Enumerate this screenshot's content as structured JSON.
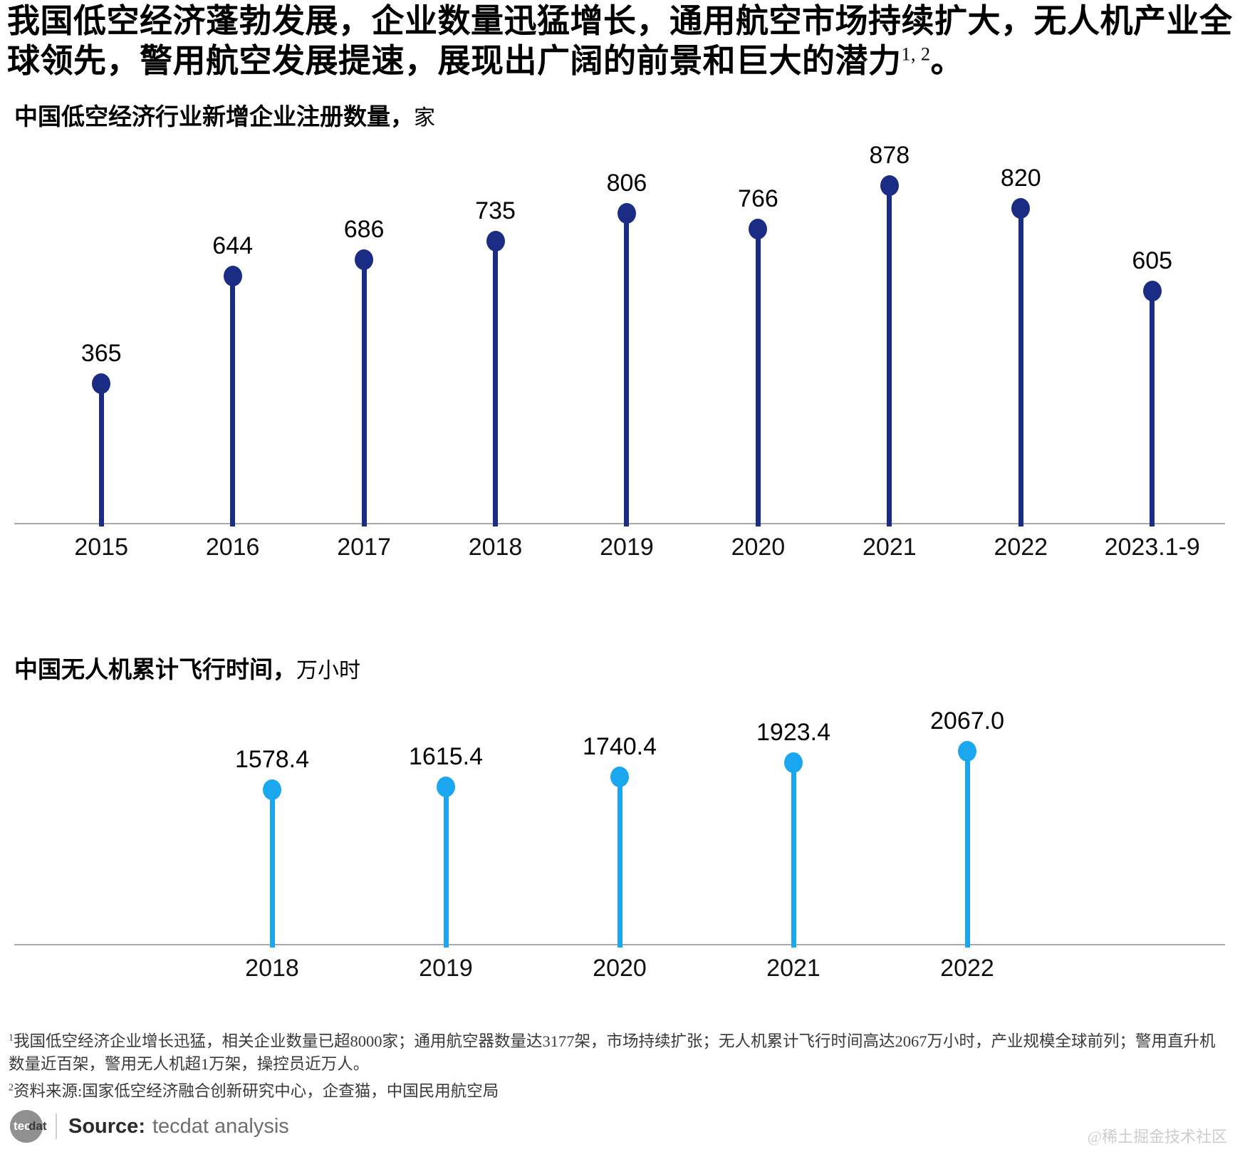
{
  "page": {
    "main_title": "我国低空经济蓬勃发展，企业数量迅猛增长，通用航空市场持续扩大，无人机产业全球领先，警用航空发展提速，展现出广阔的前景和巨大的潜力",
    "main_title_sup": "1, 2",
    "main_title_end": "。"
  },
  "chart_data": [
    {
      "type": "lollipop",
      "title": "中国低空经济行业新增企业注册数量，",
      "unit": "家",
      "categories": [
        "2015",
        "2016",
        "2017",
        "2018",
        "2019",
        "2020",
        "2021",
        "2022",
        "2023.1-9"
      ],
      "values": [
        365,
        644,
        686,
        735,
        806,
        766,
        878,
        820,
        605
      ],
      "value_labels": [
        "365",
        "644",
        "686",
        "735",
        "806",
        "766",
        "878",
        "820",
        "605"
      ],
      "color": "#1B2C85",
      "ylim": [
        0,
        1000
      ],
      "grid": false,
      "legend": "none",
      "xlabel": "",
      "ylabel": "新增企业注册数量（家）"
    },
    {
      "type": "lollipop",
      "title": "中国无人机累计飞行时间，",
      "unit": "万小时",
      "categories": [
        "2018",
        "2019",
        "2020",
        "2021",
        "2022"
      ],
      "values": [
        1578.4,
        1615.4,
        1740.4,
        1923.4,
        2067.0
      ],
      "value_labels": [
        "1578.4",
        "1615.4",
        "1740.4",
        "1923.4",
        "2067.0"
      ],
      "color": "#1BA7EF",
      "ylim": [
        -400,
        2600
      ],
      "grid": false,
      "legend": "none",
      "xlabel": "",
      "ylabel": "累计飞行时间（万小时）"
    }
  ],
  "footnotes": {
    "note1_sup": "1",
    "note1": "我国低空经济企业增长迅猛，相关企业数量已超8000家；通用航空器数量达3177架，市场持续扩张；无人机累计飞行时间高达2067万小时，产业规模全球前列；警用直升机数量近百架，警用无人机超1万架，操控员近万人。",
    "note2_sup": "2",
    "note2": "资料来源:国家低空经济融合创新研究中心，企查猫，中国民用航空局"
  },
  "source": {
    "logo_tec": "tec",
    "logo_dat": "dat",
    "label": "Source:",
    "text": "tecdat analysis",
    "watermark": "@稀土掘金技术社区"
  },
  "colors": {
    "navy": "#1B2C85",
    "sky": "#1BA7EF",
    "axis_gray": "#A9A9A9"
  }
}
